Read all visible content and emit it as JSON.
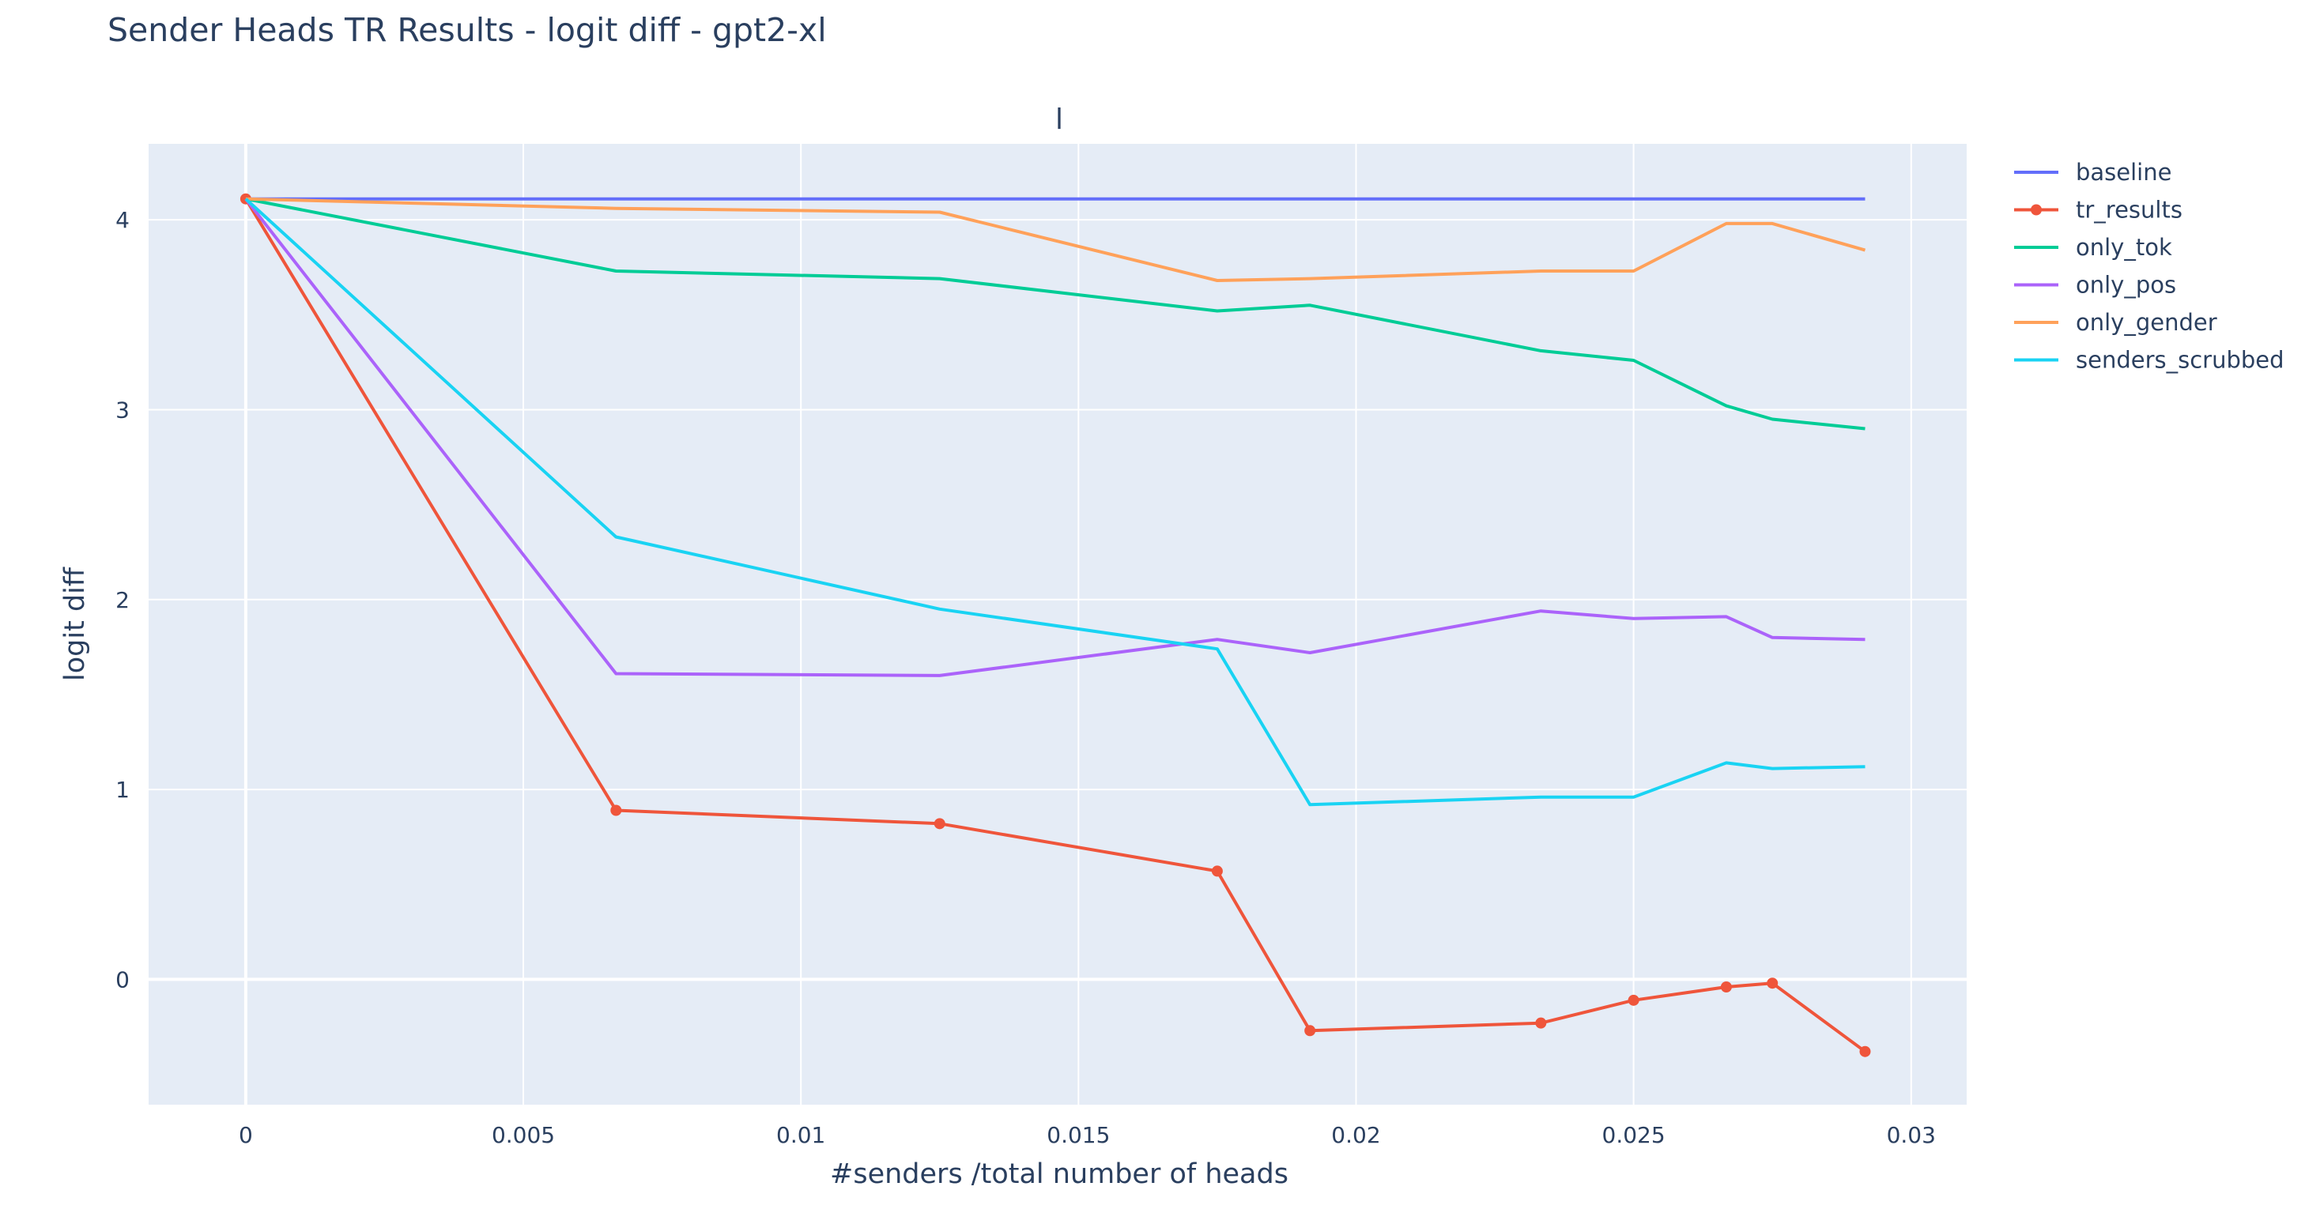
{
  "chart_data": {
    "type": "line",
    "title": "Sender Heads TR Results - logit diff - gpt2-xl",
    "subtitle": "l",
    "xlabel": "#senders /total number of heads",
    "ylabel": "logit diff",
    "xlim": [
      -0.00175,
      0.031
    ],
    "ylim": [
      -0.66,
      4.4
    ],
    "xticks": [
      0,
      0.005,
      0.01,
      0.015,
      0.02,
      0.025,
      0.03
    ],
    "xtick_labels": [
      "0",
      "0.005",
      "0.01",
      "0.015",
      "0.02",
      "0.025",
      "0.03"
    ],
    "yticks": [
      0,
      1,
      2,
      3,
      4
    ],
    "ytick_labels": [
      "0",
      "1",
      "2",
      "3",
      "4"
    ],
    "grid": true,
    "legend_position": "right",
    "x": [
      0,
      0.00667,
      0.0125,
      0.0175,
      0.01917,
      0.02333,
      0.025,
      0.02667,
      0.0275,
      0.02917
    ],
    "series": [
      {
        "name": "baseline",
        "color": "#636efa",
        "markers": false,
        "values": [
          4.11,
          4.11,
          4.11,
          4.11,
          4.11,
          4.11,
          4.11,
          4.11,
          4.11,
          4.11
        ]
      },
      {
        "name": "tr_results",
        "color": "#ef553b",
        "markers": true,
        "values": [
          4.11,
          0.89,
          0.82,
          0.57,
          -0.27,
          -0.23,
          -0.11,
          -0.04,
          -0.02,
          -0.38
        ]
      },
      {
        "name": "only_tok",
        "color": "#00cc96",
        "markers": false,
        "values": [
          4.11,
          3.73,
          3.69,
          3.52,
          3.55,
          3.31,
          3.26,
          3.02,
          2.95,
          2.9
        ]
      },
      {
        "name": "only_pos",
        "color": "#ab63fa",
        "markers": false,
        "values": [
          4.11,
          1.61,
          1.6,
          1.79,
          1.72,
          1.94,
          1.9,
          1.91,
          1.8,
          1.79
        ]
      },
      {
        "name": "only_gender",
        "color": "#ffa15a",
        "markers": false,
        "values": [
          4.11,
          4.06,
          4.04,
          3.68,
          3.69,
          3.73,
          3.73,
          3.98,
          3.98,
          3.84
        ]
      },
      {
        "name": "senders_scrubbed",
        "color": "#19d3f3",
        "markers": false,
        "values": [
          4.11,
          2.33,
          1.95,
          1.74,
          0.92,
          0.96,
          0.96,
          1.14,
          1.11,
          1.12
        ]
      }
    ]
  }
}
